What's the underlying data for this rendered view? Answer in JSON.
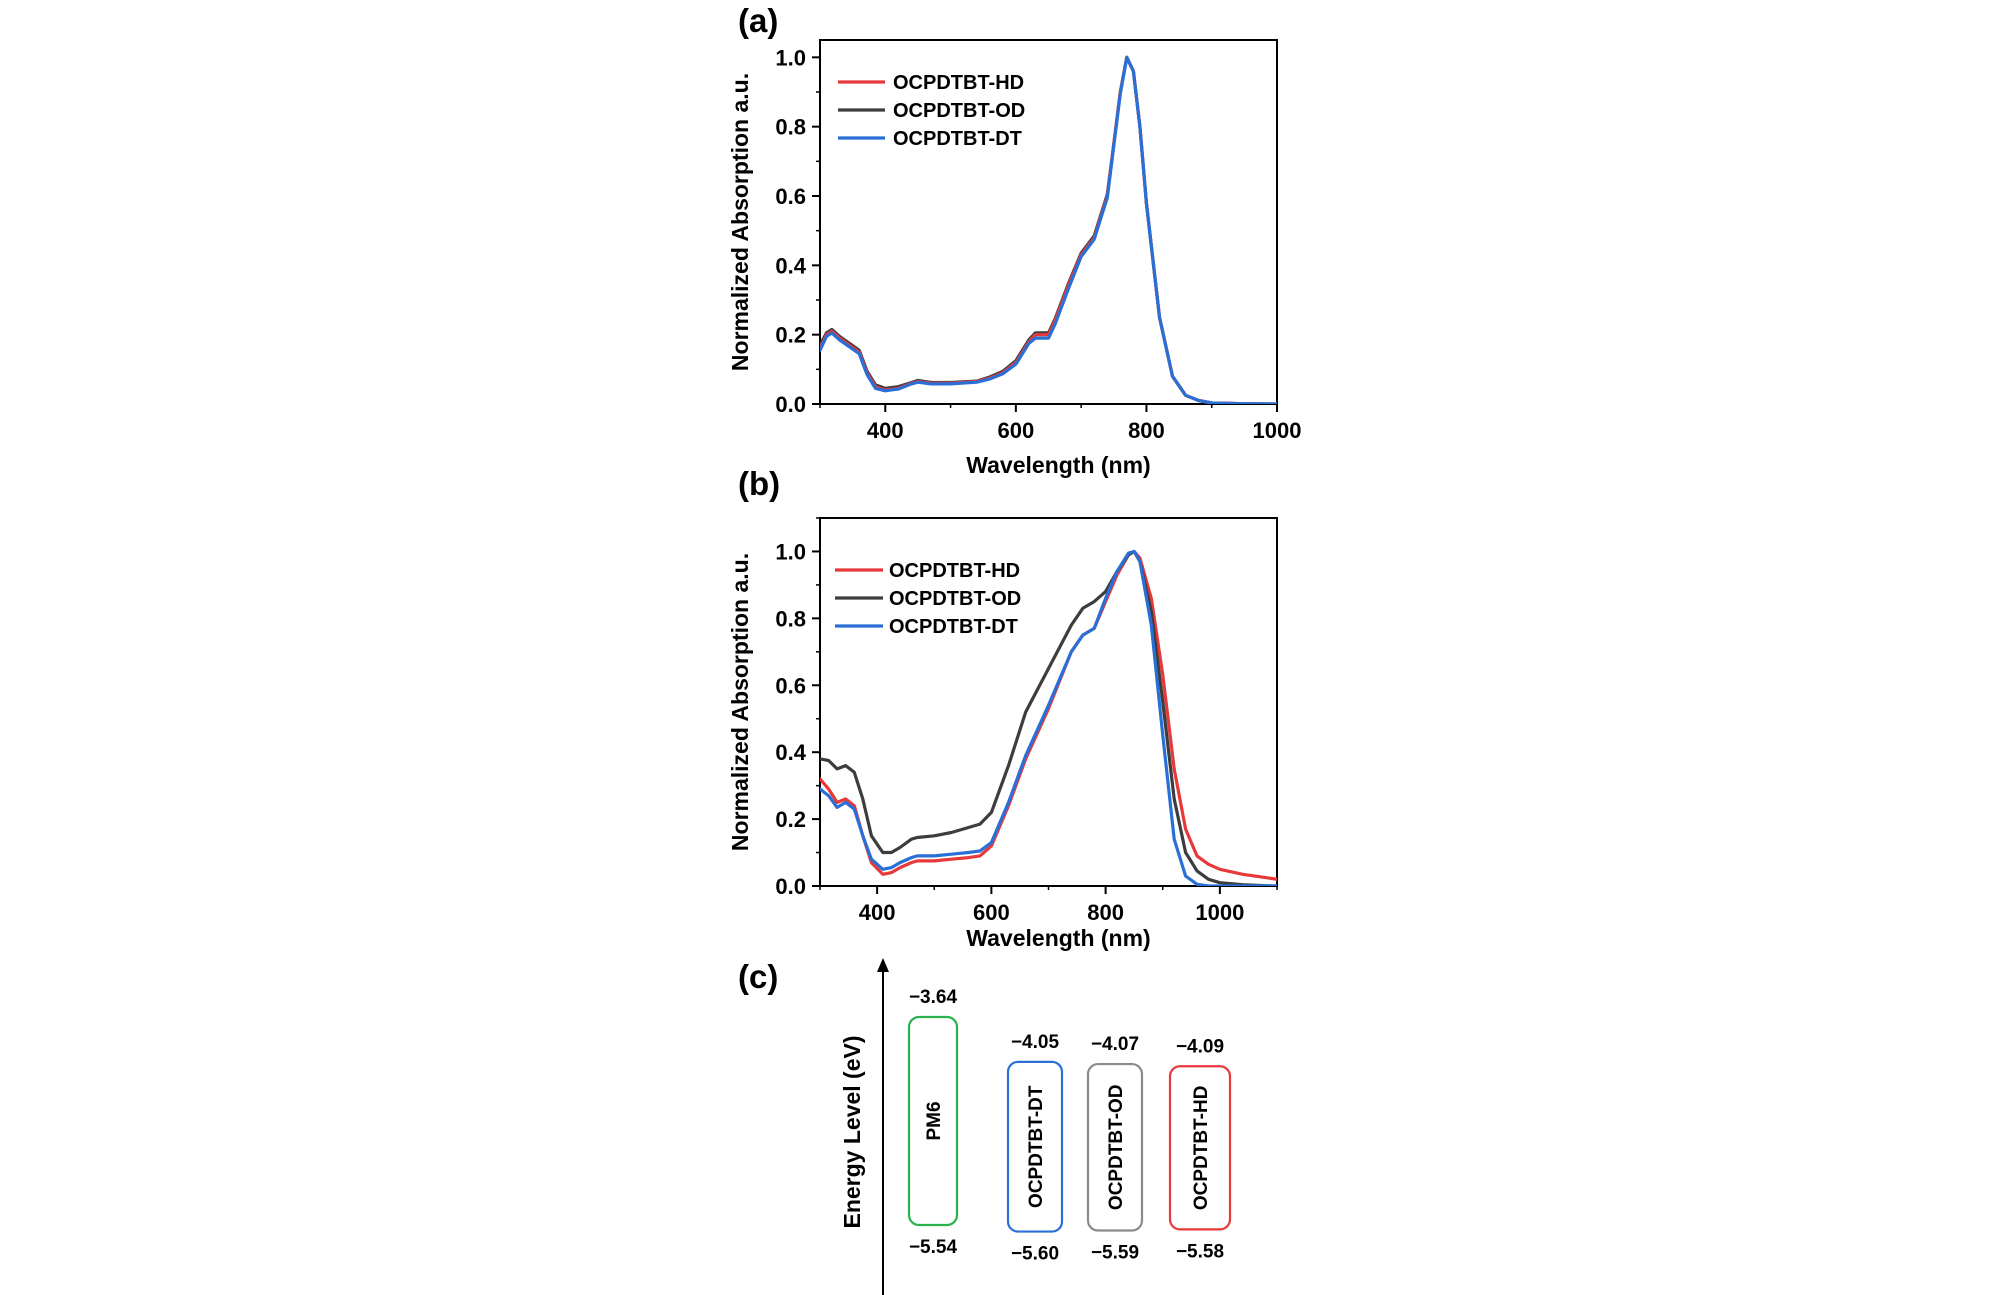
{
  "panels": [
    {
      "label": "(a)"
    },
    {
      "label": "(b)"
    },
    {
      "label": "(c)"
    }
  ],
  "colors": {
    "HD": "#e8393a",
    "OD": "#3d3d3d",
    "DT": "#2a6fd6",
    "PM6": "#2bb24c"
  },
  "chart_data": [
    {
      "type": "line",
      "panel": "(a)",
      "xlabel": "Wavelength (nm)",
      "ylabel": "Normalized Absorption a.u.",
      "xlim": [
        300,
        1000
      ],
      "ylim": [
        0.0,
        1.05
      ],
      "xticks": [
        400,
        600,
        800,
        1000
      ],
      "yticks": [
        0.0,
        0.2,
        0.4,
        0.6,
        0.8,
        1.0
      ],
      "xtick_labels": [
        "400",
        "600",
        "800",
        "1000"
      ],
      "ytick_labels": [
        "0.0",
        "0.2",
        "0.4",
        "0.6",
        "0.8",
        "1.0"
      ],
      "legend_position": "top-left",
      "series": [
        {
          "name": "OCPDTBT-HD",
          "color": "#e8393a",
          "x": [
            300,
            310,
            318,
            330,
            345,
            360,
            372,
            385,
            400,
            420,
            440,
            450,
            470,
            500,
            540,
            560,
            580,
            600,
            620,
            630,
            650,
            660,
            680,
            700,
            720,
            740,
            750,
            760,
            770,
            780,
            790,
            800,
            820,
            840,
            860,
            880,
            900,
            950,
            1000
          ],
          "y": [
            0.16,
            0.2,
            0.21,
            0.19,
            0.17,
            0.15,
            0.09,
            0.05,
            0.04,
            0.045,
            0.06,
            0.065,
            0.06,
            0.06,
            0.065,
            0.075,
            0.09,
            0.12,
            0.18,
            0.2,
            0.2,
            0.24,
            0.34,
            0.43,
            0.48,
            0.6,
            0.75,
            0.9,
            1.0,
            0.96,
            0.8,
            0.58,
            0.25,
            0.08,
            0.025,
            0.01,
            0.003,
            0.001,
            0.0
          ]
        },
        {
          "name": "OCPDTBT-OD",
          "color": "#3d3d3d",
          "x": [
            300,
            310,
            318,
            330,
            345,
            360,
            372,
            385,
            400,
            420,
            440,
            450,
            470,
            500,
            540,
            560,
            580,
            600,
            620,
            630,
            650,
            660,
            680,
            700,
            720,
            740,
            750,
            760,
            770,
            780,
            790,
            800,
            820,
            840,
            860,
            880,
            900,
            950,
            1000
          ],
          "y": [
            0.17,
            0.205,
            0.215,
            0.195,
            0.175,
            0.155,
            0.095,
            0.055,
            0.045,
            0.05,
            0.062,
            0.068,
            0.062,
            0.062,
            0.066,
            0.078,
            0.094,
            0.125,
            0.185,
            0.205,
            0.205,
            0.245,
            0.345,
            0.435,
            0.485,
            0.605,
            0.75,
            0.9,
            1.0,
            0.96,
            0.8,
            0.58,
            0.25,
            0.08,
            0.025,
            0.01,
            0.003,
            0.001,
            0.0
          ]
        },
        {
          "name": "OCPDTBT-DT",
          "color": "#2a6fd6",
          "x": [
            300,
            310,
            318,
            330,
            345,
            360,
            372,
            385,
            400,
            420,
            440,
            450,
            470,
            500,
            540,
            560,
            580,
            600,
            620,
            630,
            650,
            660,
            680,
            700,
            720,
            740,
            750,
            760,
            770,
            780,
            790,
            800,
            820,
            840,
            860,
            880,
            900,
            950,
            1000
          ],
          "y": [
            0.155,
            0.195,
            0.205,
            0.185,
            0.165,
            0.145,
            0.085,
            0.045,
            0.038,
            0.043,
            0.058,
            0.063,
            0.058,
            0.058,
            0.063,
            0.072,
            0.087,
            0.115,
            0.175,
            0.19,
            0.19,
            0.23,
            0.33,
            0.425,
            0.475,
            0.595,
            0.745,
            0.895,
            1.0,
            0.96,
            0.8,
            0.58,
            0.25,
            0.08,
            0.025,
            0.01,
            0.003,
            0.001,
            0.0
          ]
        }
      ]
    },
    {
      "type": "line",
      "panel": "(b)",
      "xlabel": "Wavelength (nm)",
      "ylabel": "Normalized Absorption a.u.",
      "xlim": [
        300,
        1100
      ],
      "ylim": [
        0.0,
        1.1
      ],
      "xticks": [
        400,
        600,
        800,
        1000
      ],
      "yticks": [
        0.0,
        0.2,
        0.4,
        0.6,
        0.8,
        1.0
      ],
      "xtick_labels": [
        "400",
        "600",
        "800",
        "1000"
      ],
      "ytick_labels": [
        "0.0",
        "0.2",
        "0.4",
        "0.6",
        "0.8",
        "1.0"
      ],
      "legend_position": "top-left",
      "series": [
        {
          "name": "OCPDTBT-HD",
          "color": "#e8393a",
          "x": [
            300,
            315,
            330,
            345,
            360,
            375,
            390,
            410,
            425,
            440,
            460,
            470,
            500,
            530,
            560,
            580,
            600,
            630,
            660,
            700,
            740,
            760,
            780,
            800,
            820,
            840,
            850,
            860,
            880,
            900,
            920,
            940,
            960,
            980,
            1000,
            1040,
            1080,
            1100
          ],
          "y": [
            0.32,
            0.29,
            0.25,
            0.26,
            0.24,
            0.15,
            0.07,
            0.035,
            0.04,
            0.055,
            0.07,
            0.075,
            0.075,
            0.08,
            0.085,
            0.09,
            0.12,
            0.24,
            0.38,
            0.53,
            0.7,
            0.75,
            0.77,
            0.85,
            0.93,
            0.99,
            1.0,
            0.98,
            0.86,
            0.63,
            0.35,
            0.17,
            0.09,
            0.065,
            0.05,
            0.035,
            0.025,
            0.02
          ]
        },
        {
          "name": "OCPDTBT-OD",
          "color": "#3d3d3d",
          "x": [
            300,
            315,
            330,
            345,
            360,
            375,
            390,
            410,
            425,
            440,
            460,
            470,
            500,
            530,
            560,
            580,
            600,
            630,
            660,
            700,
            740,
            760,
            780,
            800,
            820,
            840,
            850,
            860,
            880,
            900,
            920,
            940,
            960,
            980,
            1000,
            1040,
            1080,
            1100
          ],
          "y": [
            0.38,
            0.375,
            0.35,
            0.36,
            0.34,
            0.26,
            0.15,
            0.1,
            0.1,
            0.115,
            0.14,
            0.145,
            0.15,
            0.16,
            0.175,
            0.185,
            0.22,
            0.36,
            0.52,
            0.65,
            0.78,
            0.83,
            0.85,
            0.88,
            0.94,
            0.99,
            1.0,
            0.97,
            0.82,
            0.55,
            0.26,
            0.1,
            0.045,
            0.02,
            0.01,
            0.004,
            0.001,
            0.0
          ]
        },
        {
          "name": "OCPDTBT-DT",
          "color": "#2a6fd6",
          "x": [
            300,
            315,
            330,
            345,
            360,
            375,
            390,
            410,
            425,
            440,
            460,
            470,
            500,
            530,
            560,
            580,
            600,
            630,
            660,
            700,
            740,
            760,
            780,
            800,
            820,
            840,
            850,
            860,
            880,
            900,
            920,
            940,
            960,
            980,
            1000,
            1040,
            1080,
            1100
          ],
          "y": [
            0.29,
            0.27,
            0.235,
            0.25,
            0.23,
            0.15,
            0.08,
            0.05,
            0.055,
            0.07,
            0.085,
            0.09,
            0.09,
            0.095,
            0.1,
            0.105,
            0.13,
            0.25,
            0.39,
            0.54,
            0.7,
            0.75,
            0.77,
            0.86,
            0.94,
            0.995,
            1.0,
            0.97,
            0.78,
            0.45,
            0.14,
            0.03,
            0.005,
            0.0,
            0.0,
            0.0,
            0.0,
            0.0
          ]
        }
      ]
    }
  ],
  "energy_diagram": {
    "axis_label": "Energy Level (eV)",
    "materials": [
      {
        "name": "PM6",
        "lumo": -3.64,
        "homo": -5.54,
        "lumo_label": "−3.64",
        "homo_label": "−5.54",
        "color": "#2bb24c"
      },
      {
        "name": "OCPDTBT-DT",
        "lumo": -4.05,
        "homo": -5.6,
        "lumo_label": "−4.05",
        "homo_label": "−5.60",
        "color": "#2a6fd6"
      },
      {
        "name": "OCPDTBT-OD",
        "lumo": -4.07,
        "homo": -5.59,
        "lumo_label": "−4.07",
        "homo_label": "−5.59",
        "color": "#8a8a8a"
      },
      {
        "name": "OCPDTBT-HD",
        "lumo": -4.09,
        "homo": -5.58,
        "lumo_label": "−4.09",
        "homo_label": "−5.58",
        "color": "#e8393a"
      }
    ]
  }
}
